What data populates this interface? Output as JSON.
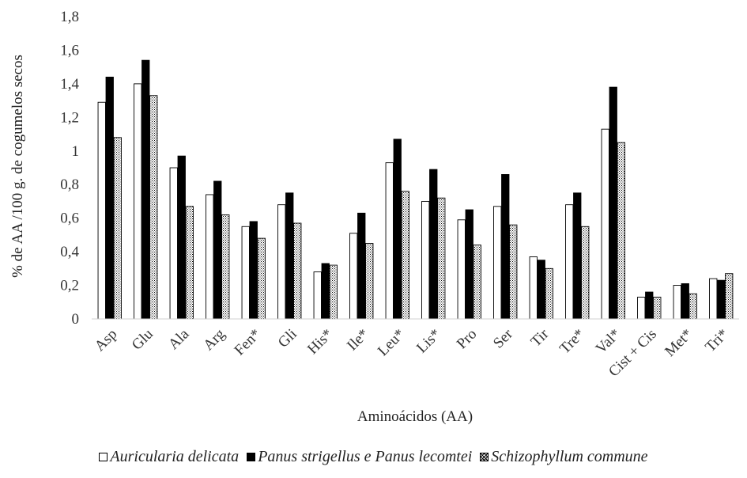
{
  "chart_data": {
    "type": "bar",
    "xlabel": "Aminoácidos (AA)",
    "ylabel": "% de AA /100 g. de cogumelos secos",
    "ylim": [
      0,
      1.8
    ],
    "yticks": [
      "0",
      "0,2",
      "0,4",
      "0,6",
      "0,8",
      "1",
      "1,2",
      "1,4",
      "1,6",
      "1,8"
    ],
    "grid": false,
    "legend_position": "bottom",
    "categories": [
      "Asp",
      "Glu",
      "Ala",
      "Arg",
      "Fen*",
      "Gli",
      "His*",
      "Ile*",
      "Leu*",
      "Lis*",
      "Pro",
      "Ser",
      "Tir",
      "Tre*",
      "Val*",
      "Cist + Cis",
      "Met*",
      "Tri*"
    ],
    "series": [
      {
        "name": "Auricularia delicata",
        "fill": "#ffffff",
        "values": [
          1.29,
          1.4,
          0.9,
          0.74,
          0.55,
          0.68,
          0.28,
          0.51,
          0.93,
          0.7,
          0.59,
          0.67,
          0.37,
          0.68,
          1.13,
          0.13,
          0.2,
          0.24
        ]
      },
      {
        "name": "Panus strigellus e Panus lecomtei",
        "fill": "#000000",
        "values": [
          1.44,
          1.54,
          0.97,
          0.82,
          0.58,
          0.75,
          0.33,
          0.63,
          1.07,
          0.89,
          0.65,
          0.86,
          0.35,
          0.75,
          1.38,
          0.16,
          0.21,
          0.23
        ]
      },
      {
        "name": "Schizophyllum commune",
        "fill": "hatch",
        "values": [
          1.08,
          1.33,
          0.67,
          0.62,
          0.48,
          0.57,
          0.32,
          0.45,
          0.76,
          0.72,
          0.44,
          0.56,
          0.3,
          0.55,
          1.05,
          0.13,
          0.15,
          0.27
        ]
      }
    ]
  }
}
